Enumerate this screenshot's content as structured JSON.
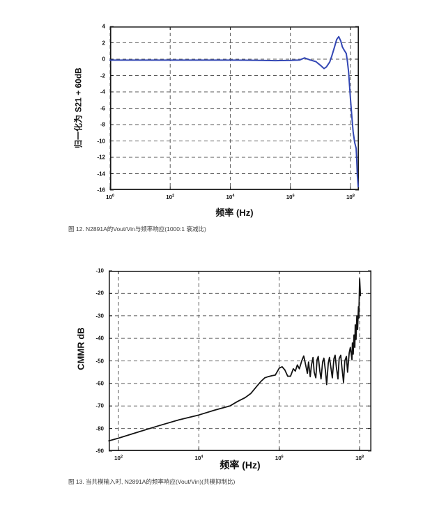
{
  "figures": [
    {
      "caption": "图 12. N2891A的Vout/Vin与频率响应(1000:1 衰减比)"
    },
    {
      "caption": "图 13. 当共模输入时, N2891A的频率响应(Vout/Vin)(共模抑制比)"
    }
  ],
  "chart_data": [
    {
      "id": "fig12",
      "type": "line",
      "title": "",
      "xlabel": "频率 (Hz)",
      "ylabel": "归一化为 S21 + 60dB",
      "x_scale": "log",
      "xlim_log": [
        0,
        8.28
      ],
      "ylim": [
        -16,
        4
      ],
      "x_tick_exponents": [
        0,
        2,
        4,
        6,
        8
      ],
      "y_ticks": [
        4,
        2,
        0,
        -2,
        -4,
        -6,
        -8,
        -10,
        -12,
        -14,
        -16
      ],
      "grid": true,
      "legend": "none",
      "line_color": "#3347b4",
      "line_width": 2,
      "points": [
        [
          0,
          -0.12
        ],
        [
          0.5,
          -0.12
        ],
        [
          1,
          -0.12
        ],
        [
          1.5,
          -0.12
        ],
        [
          2,
          -0.12
        ],
        [
          2.5,
          -0.12
        ],
        [
          3,
          -0.12
        ],
        [
          3.5,
          -0.12
        ],
        [
          4,
          -0.12
        ],
        [
          4.5,
          -0.13
        ],
        [
          5,
          -0.15
        ],
        [
          5.5,
          -0.18
        ],
        [
          6,
          -0.15
        ],
        [
          6.31,
          -0.1
        ],
        [
          6.47,
          0.15
        ],
        [
          6.66,
          -0.1
        ],
        [
          6.85,
          -0.3
        ],
        [
          7.0,
          -0.75
        ],
        [
          7.12,
          -1.15
        ],
        [
          7.2,
          -0.95
        ],
        [
          7.31,
          -0.35
        ],
        [
          7.38,
          0.4
        ],
        [
          7.47,
          1.5
        ],
        [
          7.54,
          2.4
        ],
        [
          7.61,
          2.75
        ],
        [
          7.68,
          2.2
        ],
        [
          7.73,
          1.5
        ],
        [
          7.8,
          1.05
        ],
        [
          7.86,
          0.7
        ],
        [
          7.9,
          -0.3
        ],
        [
          7.94,
          -1.6
        ],
        [
          7.97,
          -3.2
        ],
        [
          8.0,
          -4.8
        ],
        [
          8.05,
          -7.2
        ],
        [
          8.09,
          -8.9
        ],
        [
          8.14,
          -10.2
        ],
        [
          8.19,
          -10.9
        ],
        [
          8.21,
          -12.4
        ],
        [
          8.23,
          -14.2
        ],
        [
          8.26,
          -15.6
        ]
      ]
    },
    {
      "id": "fig13",
      "type": "line",
      "title": "",
      "xlabel": "频率 (Hz)",
      "ylabel": "CMMR dB",
      "x_scale": "log",
      "xlim_log": [
        1.757,
        8.293
      ],
      "ylim": [
        -90,
        -10
      ],
      "x_tick_exponents": [
        2,
        4,
        6,
        8
      ],
      "y_ticks": [
        -10,
        -20,
        -30,
        -40,
        -50,
        -60,
        -70,
        -80,
        -90
      ],
      "grid": true,
      "legend": "none",
      "line_color": "#141414",
      "line_width": 1.8,
      "points": [
        [
          1.76,
          -85.5
        ],
        [
          2.0,
          -84.3
        ],
        [
          2.5,
          -81.5
        ],
        [
          3.0,
          -78.8
        ],
        [
          3.5,
          -76.2
        ],
        [
          4.0,
          -74.0
        ],
        [
          4.4,
          -71.8
        ],
        [
          4.77,
          -70.0
        ],
        [
          4.96,
          -68.0
        ],
        [
          5.15,
          -66.3
        ],
        [
          5.29,
          -64.5
        ],
        [
          5.43,
          -61.5
        ],
        [
          5.55,
          -59.0
        ],
        [
          5.64,
          -57.5
        ],
        [
          5.72,
          -57.0
        ],
        [
          5.81,
          -56.6
        ],
        [
          5.9,
          -56.3
        ],
        [
          6.0,
          -53.2
        ],
        [
          6.07,
          -52.6
        ],
        [
          6.14,
          -54.0
        ],
        [
          6.21,
          -56.8
        ],
        [
          6.28,
          -56.8
        ],
        [
          6.35,
          -53.5
        ],
        [
          6.4,
          -54.5
        ],
        [
          6.45,
          -51.8
        ],
        [
          6.5,
          -53.5
        ],
        [
          6.56,
          -50.0
        ],
        [
          6.61,
          -47.8
        ],
        [
          6.66,
          -52.0
        ],
        [
          6.7,
          -55.5
        ],
        [
          6.73,
          -50.5
        ],
        [
          6.77,
          -57.0
        ],
        [
          6.8,
          -52.0
        ],
        [
          6.84,
          -48.5
        ],
        [
          6.87,
          -55.0
        ],
        [
          6.91,
          -57.5
        ],
        [
          6.94,
          -49.5
        ],
        [
          6.97,
          -48.0
        ],
        [
          7.01,
          -54.5
        ],
        [
          7.04,
          -58.0
        ],
        [
          7.08,
          -50.5
        ],
        [
          7.11,
          -48.8
        ],
        [
          7.15,
          -54.5
        ],
        [
          7.18,
          -60.5
        ],
        [
          7.22,
          -51.0
        ],
        [
          7.25,
          -48.5
        ],
        [
          7.29,
          -53.5
        ],
        [
          7.32,
          -57.5
        ],
        [
          7.36,
          -49.0
        ],
        [
          7.39,
          -47.5
        ],
        [
          7.42,
          -52.5
        ],
        [
          7.46,
          -58.0
        ],
        [
          7.49,
          -49.0
        ],
        [
          7.53,
          -47.5
        ],
        [
          7.56,
          -53.0
        ],
        [
          7.6,
          -59.5
        ],
        [
          7.63,
          -50.0
        ],
        [
          7.67,
          -48.0
        ],
        [
          7.7,
          -55.0
        ],
        [
          7.74,
          -46.5
        ],
        [
          7.77,
          -44.0
        ],
        [
          7.81,
          -49.5
        ],
        [
          7.82,
          -42.0
        ],
        [
          7.84,
          -47.0
        ],
        [
          7.86,
          -38.5
        ],
        [
          7.88,
          -44.0
        ],
        [
          7.89,
          -34.0
        ],
        [
          7.91,
          -40.5
        ],
        [
          7.93,
          -30.0
        ],
        [
          7.95,
          -36.0
        ],
        [
          7.97,
          -26.0
        ],
        [
          7.98,
          -31.0
        ],
        [
          8.0,
          -13.5
        ],
        [
          8.02,
          -21.0
        ]
      ]
    }
  ]
}
